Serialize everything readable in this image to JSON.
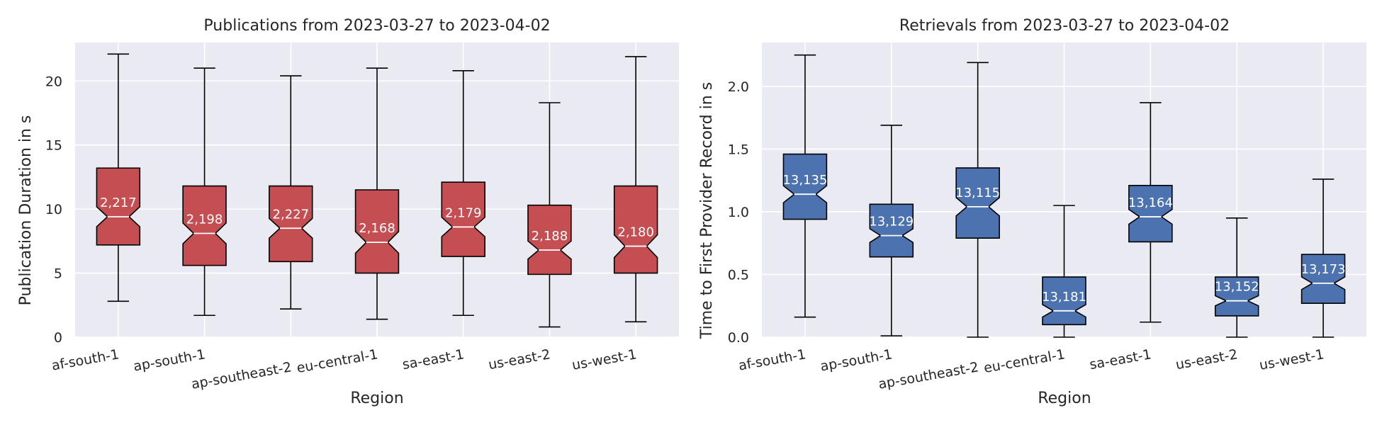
{
  "chart_data": [
    {
      "type": "box",
      "title": "Publications from 2023-03-27 to 2023-04-02",
      "xlabel": "Region",
      "ylabel": "Publication Duration in s",
      "ylim": [
        0,
        23
      ],
      "yticks": [
        0,
        5,
        10,
        15,
        20
      ],
      "grid": true,
      "notched": true,
      "color": "#c44e52",
      "categories": [
        "af-south-1",
        "ap-south-1",
        "ap-southeast-2",
        "eu-central-1",
        "sa-east-1",
        "us-east-2",
        "us-west-1"
      ],
      "boxes": [
        {
          "whislo": 2.8,
          "q1": 7.2,
          "med": 9.4,
          "q3": 13.2,
          "whishi": 22.1,
          "count": "2,217"
        },
        {
          "whislo": 1.7,
          "q1": 5.6,
          "med": 8.1,
          "q3": 11.8,
          "whishi": 21.0,
          "count": "2,198"
        },
        {
          "whislo": 2.2,
          "q1": 5.9,
          "med": 8.5,
          "q3": 11.8,
          "whishi": 20.4,
          "count": "2,227"
        },
        {
          "whislo": 1.4,
          "q1": 5.0,
          "med": 7.4,
          "q3": 11.5,
          "whishi": 21.0,
          "count": "2,168"
        },
        {
          "whislo": 1.7,
          "q1": 6.3,
          "med": 8.6,
          "q3": 12.1,
          "whishi": 20.8,
          "count": "2,179"
        },
        {
          "whislo": 0.8,
          "q1": 4.9,
          "med": 6.8,
          "q3": 10.3,
          "whishi": 18.3,
          "count": "2,188"
        },
        {
          "whislo": 1.2,
          "q1": 5.0,
          "med": 7.1,
          "q3": 11.8,
          "whishi": 21.9,
          "count": "2,180"
        }
      ]
    },
    {
      "type": "box",
      "title": "Retrievals from 2023-03-27 to 2023-04-02",
      "xlabel": "Region",
      "ylabel": "Time to First Provider Record in s",
      "ylim": [
        0,
        2.35
      ],
      "yticks": [
        0.0,
        0.5,
        1.0,
        1.5,
        2.0
      ],
      "grid": true,
      "notched": true,
      "color": "#4c72b0",
      "categories": [
        "af-south-1",
        "ap-south-1",
        "ap-southeast-2",
        "eu-central-1",
        "sa-east-1",
        "us-east-2",
        "us-west-1"
      ],
      "boxes": [
        {
          "whislo": 0.16,
          "q1": 0.94,
          "med": 1.14,
          "q3": 1.46,
          "whishi": 2.25,
          "count": "13,135"
        },
        {
          "whislo": 0.01,
          "q1": 0.64,
          "med": 0.81,
          "q3": 1.06,
          "whishi": 1.69,
          "count": "13,129"
        },
        {
          "whislo": 0.0,
          "q1": 0.79,
          "med": 1.04,
          "q3": 1.35,
          "whishi": 2.19,
          "count": "13,115"
        },
        {
          "whislo": 0.0,
          "q1": 0.1,
          "med": 0.21,
          "q3": 0.48,
          "whishi": 1.05,
          "count": "13,181"
        },
        {
          "whislo": 0.12,
          "q1": 0.76,
          "med": 0.96,
          "q3": 1.21,
          "whishi": 1.87,
          "count": "13,164"
        },
        {
          "whislo": 0.0,
          "q1": 0.17,
          "med": 0.29,
          "q3": 0.48,
          "whishi": 0.95,
          "count": "13,152"
        },
        {
          "whislo": 0.0,
          "q1": 0.27,
          "med": 0.43,
          "q3": 0.66,
          "whishi": 1.26,
          "count": "13,173"
        }
      ]
    }
  ]
}
